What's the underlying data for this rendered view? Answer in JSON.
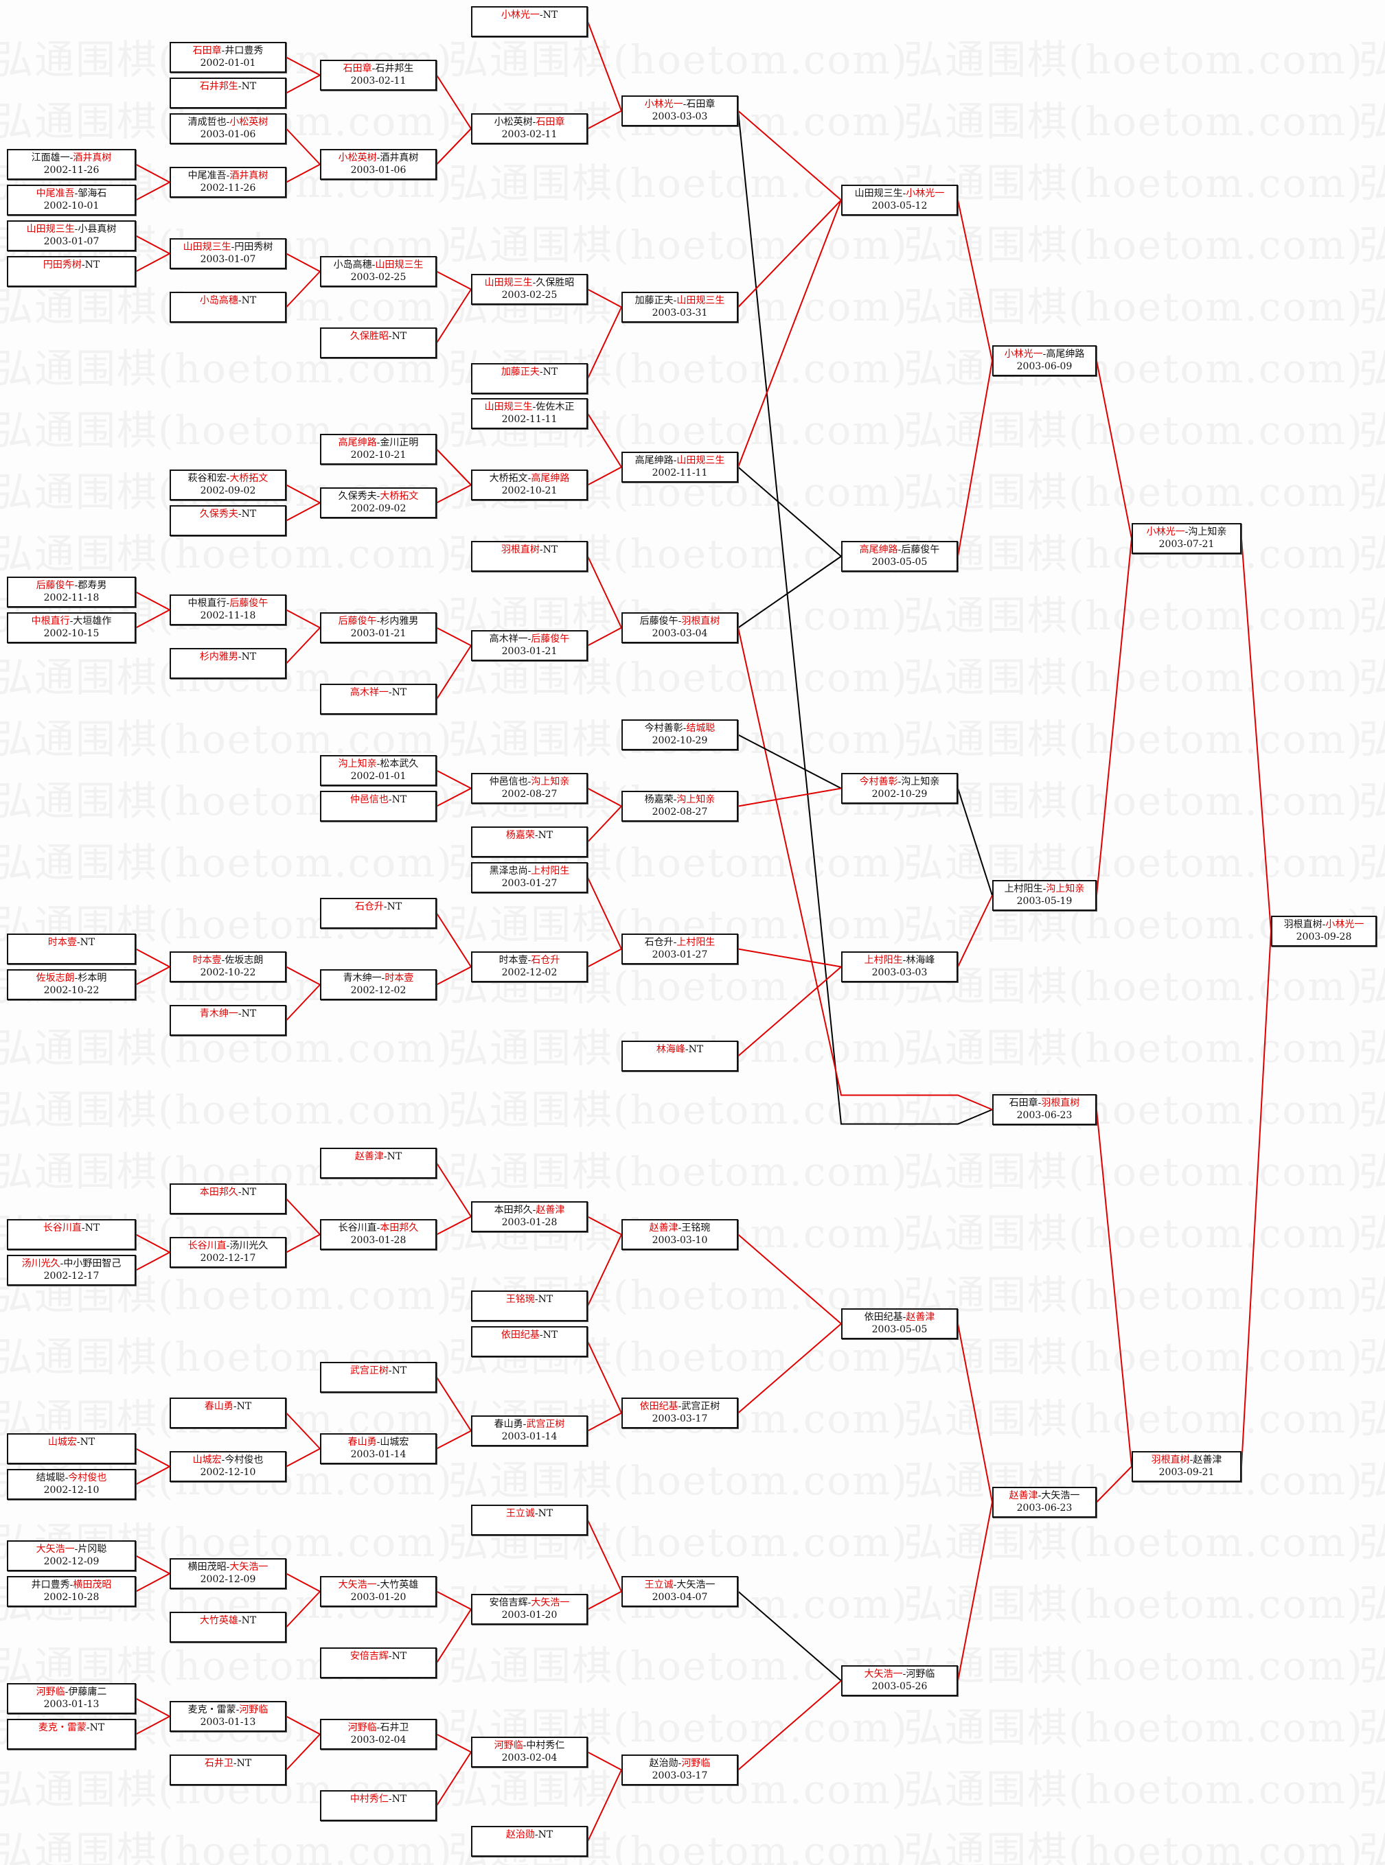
{
  "watermark": "弘通围棋(hoetom.com)",
  "separator": "-",
  "colors": {
    "winner": "#e00000",
    "loser_line": "#000000",
    "winner_line": "#e00000"
  },
  "columns": [
    [
      {
        "p1": "江面雄一",
        "p2": "酒井真树",
        "date": "2002-11-26",
        "winner": 2
      },
      {
        "p1": "中尾准吾",
        "p2": "邹海石",
        "date": "2002-10-01",
        "winner": 1
      },
      {
        "p1": "山田规三生",
        "p2": "小县真树",
        "date": "2003-01-07",
        "winner": 1
      },
      {
        "p1": "円田秀树",
        "p2": "NT",
        "date": "",
        "winner": 1
      },
      {
        "p1": "后藤俊午",
        "p2": "郡寿男",
        "date": "2002-11-18",
        "winner": 1
      },
      {
        "p1": "中根直行",
        "p2": "大垣雄作",
        "date": "2002-10-15",
        "winner": 1
      },
      {
        "p1": "时本壹",
        "p2": "NT",
        "date": "",
        "winner": 1
      },
      {
        "p1": "佐坂志朗",
        "p2": "杉本明",
        "date": "2002-10-22",
        "winner": 1
      },
      {
        "p1": "长谷川直",
        "p2": "NT",
        "date": "",
        "winner": 1
      },
      {
        "p1": "汤川光久",
        "p2": "中小野田智己",
        "date": "2002-12-17",
        "winner": 1
      },
      {
        "p1": "山城宏",
        "p2": "NT",
        "date": "",
        "winner": 1
      },
      {
        "p1": "结城聪",
        "p2": "今村俊也",
        "date": "2002-12-10",
        "winner": 2
      },
      {
        "p1": "大矢浩一",
        "p2": "片冈聪",
        "date": "2002-12-09",
        "winner": 1
      },
      {
        "p1": "井口豊秀",
        "p2": "横田茂昭",
        "date": "2002-10-28",
        "winner": 2
      },
      {
        "p1": "河野临",
        "p2": "伊藤庸二",
        "date": "2003-01-13",
        "winner": 1
      },
      {
        "p1": "麦克・雷蒙",
        "p2": "NT",
        "date": "",
        "winner": 1
      }
    ],
    [
      {
        "p1": "石田章",
        "p2": "井口豊秀",
        "date": "2002-01-01",
        "winner": 1
      },
      {
        "p1": "石井邦生",
        "p2": "NT",
        "date": "",
        "winner": 1
      },
      {
        "p1": "清成哲也",
        "p2": "小松英树",
        "date": "2003-01-06",
        "winner": 2
      },
      {
        "p1": "中尾准吾",
        "p2": "酒井真树",
        "date": "2002-11-26",
        "winner": 2
      },
      {
        "p1": "山田规三生",
        "p2": "円田秀树",
        "date": "2003-01-07",
        "winner": 1
      },
      {
        "p1": "小岛高穗",
        "p2": "NT",
        "date": "",
        "winner": 1
      },
      {
        "p1": "萩谷和宏",
        "p2": "大桥拓文",
        "date": "2002-09-02",
        "winner": 2
      },
      {
        "p1": "久保秀夫",
        "p2": "NT",
        "date": "",
        "winner": 1
      },
      {
        "p1": "中根直行",
        "p2": "后藤俊午",
        "date": "2002-11-18",
        "winner": 2
      },
      {
        "p1": "杉内雅男",
        "p2": "NT",
        "date": "",
        "winner": 1
      },
      {
        "p1": "时本壹",
        "p2": "佐坂志朗",
        "date": "2002-10-22",
        "winner": 1
      },
      {
        "p1": "青木绅一",
        "p2": "NT",
        "date": "",
        "winner": 1
      },
      {
        "p1": "本田邦久",
        "p2": "NT",
        "date": "",
        "winner": 1
      },
      {
        "p1": "长谷川直",
        "p2": "汤川光久",
        "date": "2002-12-17",
        "winner": 1
      },
      {
        "p1": "春山勇",
        "p2": "NT",
        "date": "",
        "winner": 1
      },
      {
        "p1": "山城宏",
        "p2": "今村俊也",
        "date": "2002-12-10",
        "winner": 1
      },
      {
        "p1": "横田茂昭",
        "p2": "大矢浩一",
        "date": "2002-12-09",
        "winner": 2
      },
      {
        "p1": "大竹英雄",
        "p2": "NT",
        "date": "",
        "winner": 1
      },
      {
        "p1": "麦克・雷蒙",
        "p2": "河野临",
        "date": "2003-01-13",
        "winner": 2
      },
      {
        "p1": "石井卫",
        "p2": "NT",
        "date": "",
        "winner": 1
      }
    ],
    [
      {
        "p1": "石田章",
        "p2": "石井邦生",
        "date": "2003-02-11",
        "winner": 1
      },
      {
        "p1": "小松英树",
        "p2": "酒井真树",
        "date": "2003-01-06",
        "winner": 1
      },
      {
        "p1": "小岛高穗",
        "p2": "山田规三生",
        "date": "2003-02-25",
        "winner": 2
      },
      {
        "p1": "久保胜昭",
        "p2": "NT",
        "date": "",
        "winner": 1
      },
      {
        "p1": "高尾绅路",
        "p2": "金川正明",
        "date": "2002-10-21",
        "winner": 1
      },
      {
        "p1": "久保秀夫",
        "p2": "大桥拓文",
        "date": "2002-09-02",
        "winner": 2
      },
      {
        "p1": "后藤俊午",
        "p2": "杉内雅男",
        "date": "2003-01-21",
        "winner": 1
      },
      {
        "p1": "高木祥一",
        "p2": "NT",
        "date": "",
        "winner": 1
      },
      {
        "p1": "沟上知亲",
        "p2": "松本武久",
        "date": "2002-01-01",
        "winner": 1
      },
      {
        "p1": "仲邑信也",
        "p2": "NT",
        "date": "",
        "winner": 1
      },
      {
        "p1": "石仓升",
        "p2": "NT",
        "date": "",
        "winner": 1
      },
      {
        "p1": "青木绅一",
        "p2": "时本壹",
        "date": "2002-12-02",
        "winner": 2
      },
      {
        "p1": "赵善津",
        "p2": "NT",
        "date": "",
        "winner": 1
      },
      {
        "p1": "长谷川直",
        "p2": "本田邦久",
        "date": "2003-01-28",
        "winner": 2
      },
      {
        "p1": "武宫正树",
        "p2": "NT",
        "date": "",
        "winner": 1
      },
      {
        "p1": "春山勇",
        "p2": "山城宏",
        "date": "2003-01-14",
        "winner": 1
      },
      {
        "p1": "大矢浩一",
        "p2": "大竹英雄",
        "date": "2003-01-20",
        "winner": 1
      },
      {
        "p1": "安倍吉辉",
        "p2": "NT",
        "date": "",
        "winner": 1
      },
      {
        "p1": "河野临",
        "p2": "石井卫",
        "date": "2003-02-04",
        "winner": 1
      },
      {
        "p1": "中村秀仁",
        "p2": "NT",
        "date": "",
        "winner": 1
      }
    ],
    [
      {
        "p1": "小林光一",
        "p2": "NT",
        "date": "",
        "winner": 1
      },
      {
        "p1": "小松英树",
        "p2": "石田章",
        "date": "2003-02-11",
        "winner": 2
      },
      {
        "p1": "山田规三生",
        "p2": "久保胜昭",
        "date": "2003-02-25",
        "winner": 1
      },
      {
        "p1": "加藤正夫",
        "p2": "NT",
        "date": "",
        "winner": 1
      },
      {
        "p1": "山田规三生",
        "p2": "佐佐木正",
        "date": "2002-11-11",
        "winner": 1
      },
      {
        "p1": "大桥拓文",
        "p2": "高尾绅路",
        "date": "2002-10-21",
        "winner": 2
      },
      {
        "p1": "羽根直树",
        "p2": "NT",
        "date": "",
        "winner": 1
      },
      {
        "p1": "高木祥一",
        "p2": "后藤俊午",
        "date": "2003-01-21",
        "winner": 2
      },
      {
        "p1": "仲邑信也",
        "p2": "沟上知亲",
        "date": "2002-08-27",
        "winner": 2
      },
      {
        "p1": "杨嘉荣",
        "p2": "NT",
        "date": "",
        "winner": 1
      },
      {
        "p1": "黑泽忠尚",
        "p2": "上村阳生",
        "date": "2003-01-27",
        "winner": 2
      },
      {
        "p1": "时本壹",
        "p2": "石仓升",
        "date": "2002-12-02",
        "winner": 2
      },
      {
        "p1": "本田邦久",
        "p2": "赵善津",
        "date": "2003-01-28",
        "winner": 2
      },
      {
        "p1": "王铭琬",
        "p2": "NT",
        "date": "",
        "winner": 1
      },
      {
        "p1": "依田纪基",
        "p2": "NT",
        "date": "",
        "winner": 1
      },
      {
        "p1": "春山勇",
        "p2": "武宫正树",
        "date": "2003-01-14",
        "winner": 2
      },
      {
        "p1": "王立诚",
        "p2": "NT",
        "date": "",
        "winner": 1
      },
      {
        "p1": "安倍吉辉",
        "p2": "大矢浩一",
        "date": "2003-01-20",
        "winner": 2
      },
      {
        "p1": "河野临",
        "p2": "中村秀仁",
        "date": "2003-02-04",
        "winner": 1
      },
      {
        "p1": "赵治勋",
        "p2": "NT",
        "date": "",
        "winner": 1
      }
    ],
    [
      {
        "p1": "小林光一",
        "p2": "石田章",
        "date": "2003-03-03",
        "winner": 1
      },
      {
        "p1": "加藤正夫",
        "p2": "山田规三生",
        "date": "2003-03-31",
        "winner": 2
      },
      {
        "p1": "高尾绅路",
        "p2": "山田规三生",
        "date": "2002-11-11",
        "winner": 2
      },
      {
        "p1": "后藤俊午",
        "p2": "羽根直树",
        "date": "2003-03-04",
        "winner": 2
      },
      {
        "p1": "今村善彰",
        "p2": "结城聪",
        "date": "2002-10-29",
        "winner": 2
      },
      {
        "p1": "杨嘉荣",
        "p2": "沟上知亲",
        "date": "2002-08-27",
        "winner": 2
      },
      {
        "p1": "石仓升",
        "p2": "上村阳生",
        "date": "2003-01-27",
        "winner": 2
      },
      {
        "p1": "林海峰",
        "p2": "NT",
        "date": "",
        "winner": 1
      },
      {
        "p1": "赵善津",
        "p2": "王铭琬",
        "date": "2003-03-10",
        "winner": 1
      },
      {
        "p1": "依田纪基",
        "p2": "武宫正树",
        "date": "2003-03-17",
        "winner": 1
      },
      {
        "p1": "王立诚",
        "p2": "大矢浩一",
        "date": "2003-04-07",
        "winner": 1
      },
      {
        "p1": "赵治勋",
        "p2": "河野临",
        "date": "2003-03-17",
        "winner": 2
      }
    ],
    [
      {
        "p1": "山田规三生",
        "p2": "小林光一",
        "date": "2003-05-12",
        "winner": 2
      },
      {
        "p1": "高尾绅路",
        "p2": "后藤俊午",
        "date": "2003-05-05",
        "winner": 1
      },
      {
        "p1": "今村善彰",
        "p2": "沟上知亲",
        "date": "2002-10-29",
        "winner": 1
      },
      {
        "p1": "上村阳生",
        "p2": "林海峰",
        "date": "2003-03-03",
        "winner": 1
      },
      {
        "p1": "依田纪基",
        "p2": "赵善津",
        "date": "2003-05-05",
        "winner": 2
      },
      {
        "p1": "大矢浩一",
        "p2": "河野临",
        "date": "2003-05-26",
        "winner": 1
      }
    ],
    [
      {
        "p1": "小林光一",
        "p2": "高尾绅路",
        "date": "2003-06-09",
        "winner": 1
      },
      {
        "p1": "上村阳生",
        "p2": "沟上知亲",
        "date": "2003-05-19",
        "winner": 2
      },
      {
        "p1": "石田章",
        "p2": "羽根直树",
        "date": "2003-06-23",
        "winner": 2
      },
      {
        "p1": "赵善津",
        "p2": "大矢浩一",
        "date": "2003-06-23",
        "winner": 1
      }
    ],
    [
      {
        "p1": "小林光一",
        "p2": "沟上知亲",
        "date": "2003-07-21",
        "winner": 1
      },
      {
        "p1": "羽根直树",
        "p2": "赵善津",
        "date": "2003-09-21",
        "winner": 1
      }
    ],
    [
      {
        "p1": "羽根直树",
        "p2": "小林光一",
        "date": "2003-09-28",
        "winner": 2
      }
    ]
  ]
}
